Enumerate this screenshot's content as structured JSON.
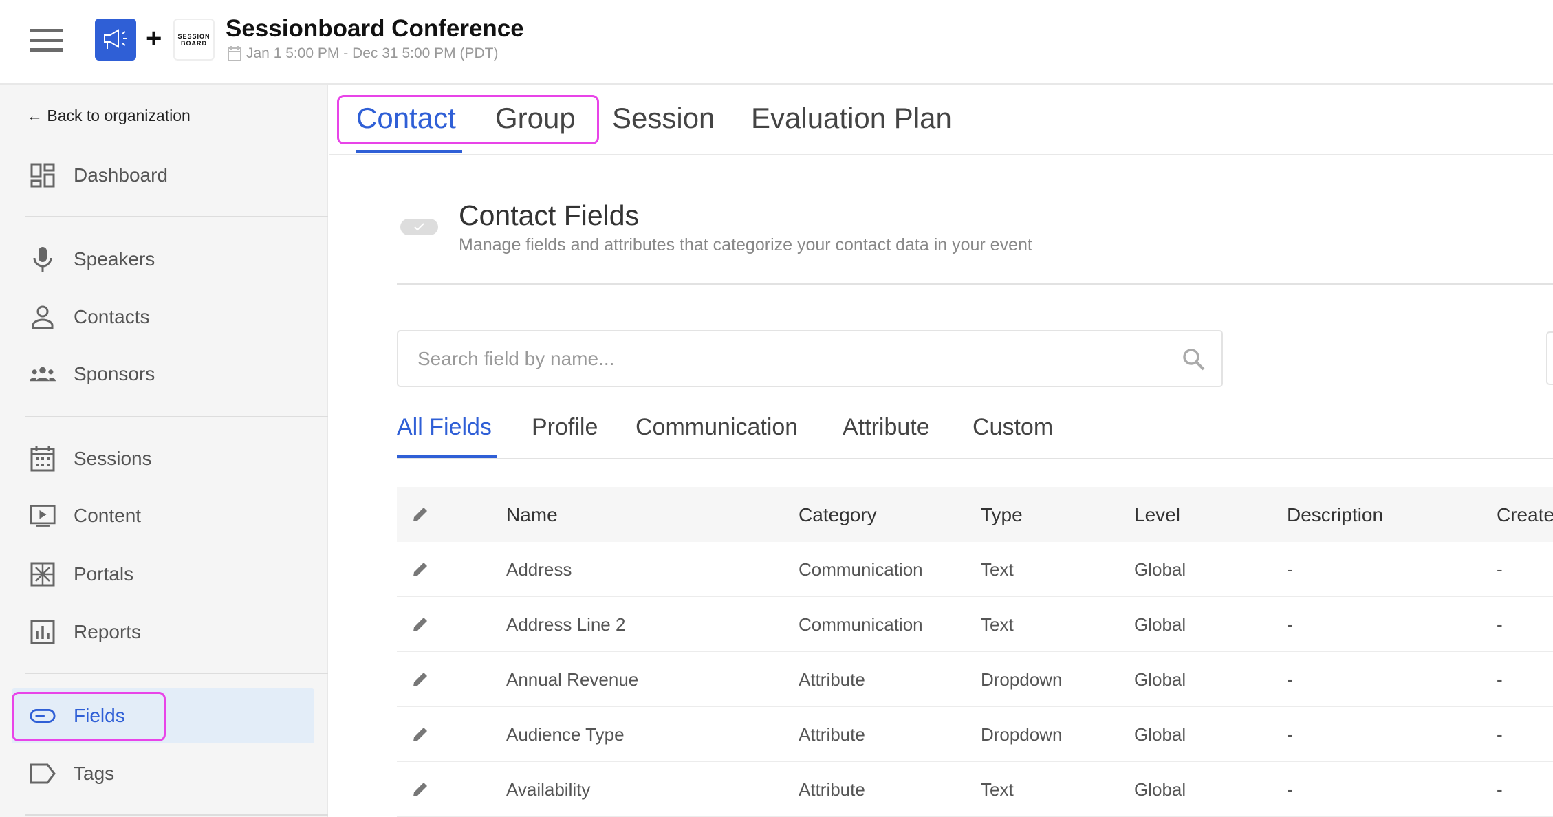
{
  "header": {
    "title": "Sessionboard Conference",
    "date": "Jan 1 5:00 PM - Dec 31 5:00 PM (PDT)",
    "logo_text": [
      "SESSION",
      "BOARD"
    ]
  },
  "sidebar": {
    "back": "Back to organization",
    "items": [
      {
        "label": "Dashboard",
        "icon": "dashboard-icon"
      },
      {
        "label": "Speakers",
        "icon": "microphone-icon"
      },
      {
        "label": "Contacts",
        "icon": "person-icon"
      },
      {
        "label": "Sponsors",
        "icon": "group-icon"
      },
      {
        "label": "Sessions",
        "icon": "calendar-icon"
      },
      {
        "label": "Content",
        "icon": "play-icon"
      },
      {
        "label": "Portals",
        "icon": "portal-icon"
      },
      {
        "label": "Reports",
        "icon": "chart-icon"
      },
      {
        "label": "Fields",
        "icon": "toggle-icon",
        "active": true
      },
      {
        "label": "Tags",
        "icon": "tag-icon"
      }
    ]
  },
  "tabs": [
    "Contact",
    "Group",
    "Session",
    "Evaluation Plan"
  ],
  "section": {
    "title": "Contact Fields",
    "subtitle": "Manage fields and attributes that categorize your contact data in your event"
  },
  "search": {
    "placeholder": "Search field by name..."
  },
  "subtabs": [
    "All Fields",
    "Profile",
    "Communication",
    "Attribute",
    "Custom"
  ],
  "table": {
    "columns": [
      "Name",
      "Category",
      "Type",
      "Level",
      "Description",
      "Create"
    ],
    "rows": [
      [
        "Address",
        "Communication",
        "Text",
        "Global",
        "-",
        "-"
      ],
      [
        "Address Line 2",
        "Communication",
        "Text",
        "Global",
        "-",
        "-"
      ],
      [
        "Annual Revenue",
        "Attribute",
        "Dropdown",
        "Global",
        "-",
        "-"
      ],
      [
        "Audience Type",
        "Attribute",
        "Dropdown",
        "Global",
        "-",
        "-"
      ],
      [
        "Availability",
        "Attribute",
        "Text",
        "Global",
        "-",
        "-"
      ]
    ]
  },
  "colors": {
    "accent": "#2f5fd6",
    "highlight": "#e844e8"
  }
}
